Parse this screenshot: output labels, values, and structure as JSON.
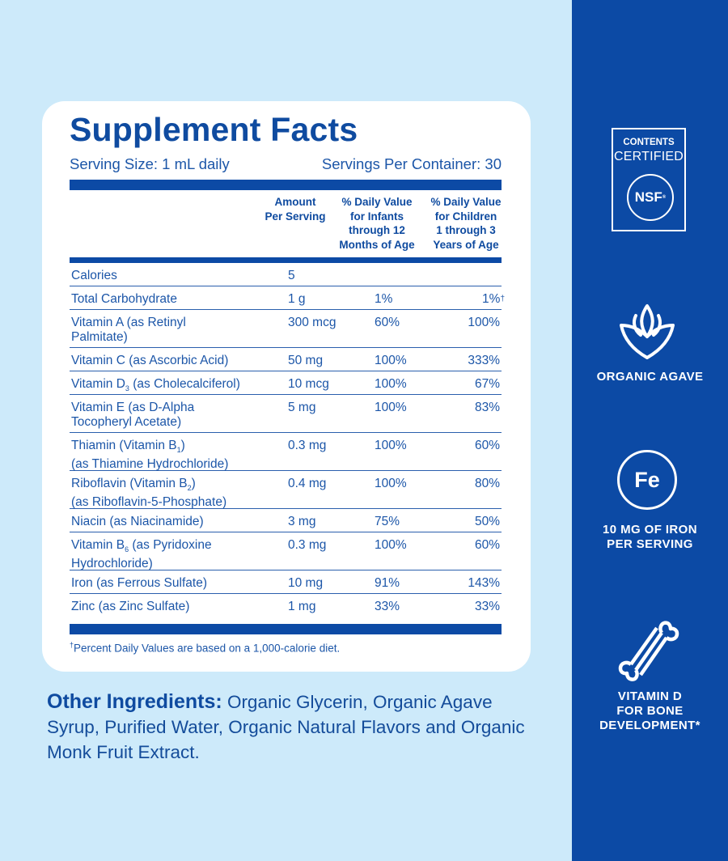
{
  "facts": {
    "title": "Supplement Facts",
    "serving_size": "Serving Size: 1 mL daily",
    "servings_per_container": "Servings Per Container: 30",
    "headers": {
      "amount": [
        "Amount",
        "Per Serving"
      ],
      "infants": [
        "% Daily Value",
        "for Infants",
        "through 12",
        "Months of Age"
      ],
      "children": [
        "% Daily Value",
        "for Children",
        "1 through 3",
        "Years of Age"
      ]
    },
    "rows": [
      {
        "name": [
          "Calories"
        ],
        "amount": "5",
        "infants": "",
        "children": ""
      },
      {
        "name": [
          "Total Carbohydrate"
        ],
        "amount": "1 g",
        "infants": "1%",
        "children": "1%",
        "dagger": true
      },
      {
        "name": [
          "Vitamin A (as Retinyl",
          "Palmitate)"
        ],
        "amount": "300 mcg",
        "infants": "60%",
        "children": "100%"
      },
      {
        "name": [
          "Vitamin C (as Ascorbic Acid)"
        ],
        "amount": "50 mg",
        "infants": "100%",
        "children": "333%"
      },
      {
        "name": [
          "Vitamin D<sub>3</sub> (as Cholecalciferol)"
        ],
        "amount": "10 mcg",
        "infants": "100%",
        "children": "67%"
      },
      {
        "name": [
          "Vitamin E (as D-Alpha",
          "Tocopheryl Acetate)"
        ],
        "amount": "5 mg",
        "infants": "100%",
        "children": "83%"
      },
      {
        "name": [
          "Thiamin (Vitamin B<sub>1</sub>)",
          "(as Thiamine Hydrochloride)"
        ],
        "amount": "0.3 mg",
        "infants": "100%",
        "children": "60%"
      },
      {
        "name": [
          "Riboflavin (Vitamin B<sub>2</sub>)",
          "(as Riboflavin-5-Phosphate)"
        ],
        "amount": "0.4 mg",
        "infants": "100%",
        "children": "80%"
      },
      {
        "name": [
          "Niacin (as Niacinamide)"
        ],
        "amount": "3 mg",
        "infants": "75%",
        "children": "50%"
      },
      {
        "name": [
          "Vitamin B<sub>6</sub> (as Pyridoxine",
          "Hydrochloride)"
        ],
        "amount": "0.3 mg",
        "infants": "100%",
        "children": "60%"
      },
      {
        "name": [
          "Iron (as Ferrous Sulfate)"
        ],
        "amount": "10 mg",
        "infants": "91%",
        "children": "143%"
      },
      {
        "name": [
          "Zinc (as Zinc Sulfate)"
        ],
        "amount": "1 mg",
        "infants": "33%",
        "children": "33%"
      }
    ],
    "footnote_mark": "†",
    "footnote": "Percent Daily Values are based on a 1,000-calorie diet."
  },
  "other_ingredients": {
    "label": "Other Ingredients:",
    "text": " Organic Glycerin, Organic Agave Syrup, Purified Water, Organic Natural Flavors and Organic Monk Fruit Extract."
  },
  "badges": {
    "nsf_contents": "CONTENTS",
    "nsf_certified": "CERTIFIED",
    "nsf_logo": "NSF",
    "agave": "ORGANIC AGAVE",
    "iron_symbol": "Fe",
    "iron": [
      "10 MG OF IRON",
      "PER SERVING"
    ],
    "vitamin_d": [
      "VITAMIN D",
      "FOR BONE",
      "DEVELOPMENT*"
    ]
  },
  "colors": {
    "brand_blue": "#0c4aa5",
    "background": "#cdeafa",
    "panel": "#ffffff"
  },
  "icons": [
    "nsf-certified-icon",
    "agave-leaf-icon",
    "iron-fe-icon",
    "bone-icon"
  ]
}
